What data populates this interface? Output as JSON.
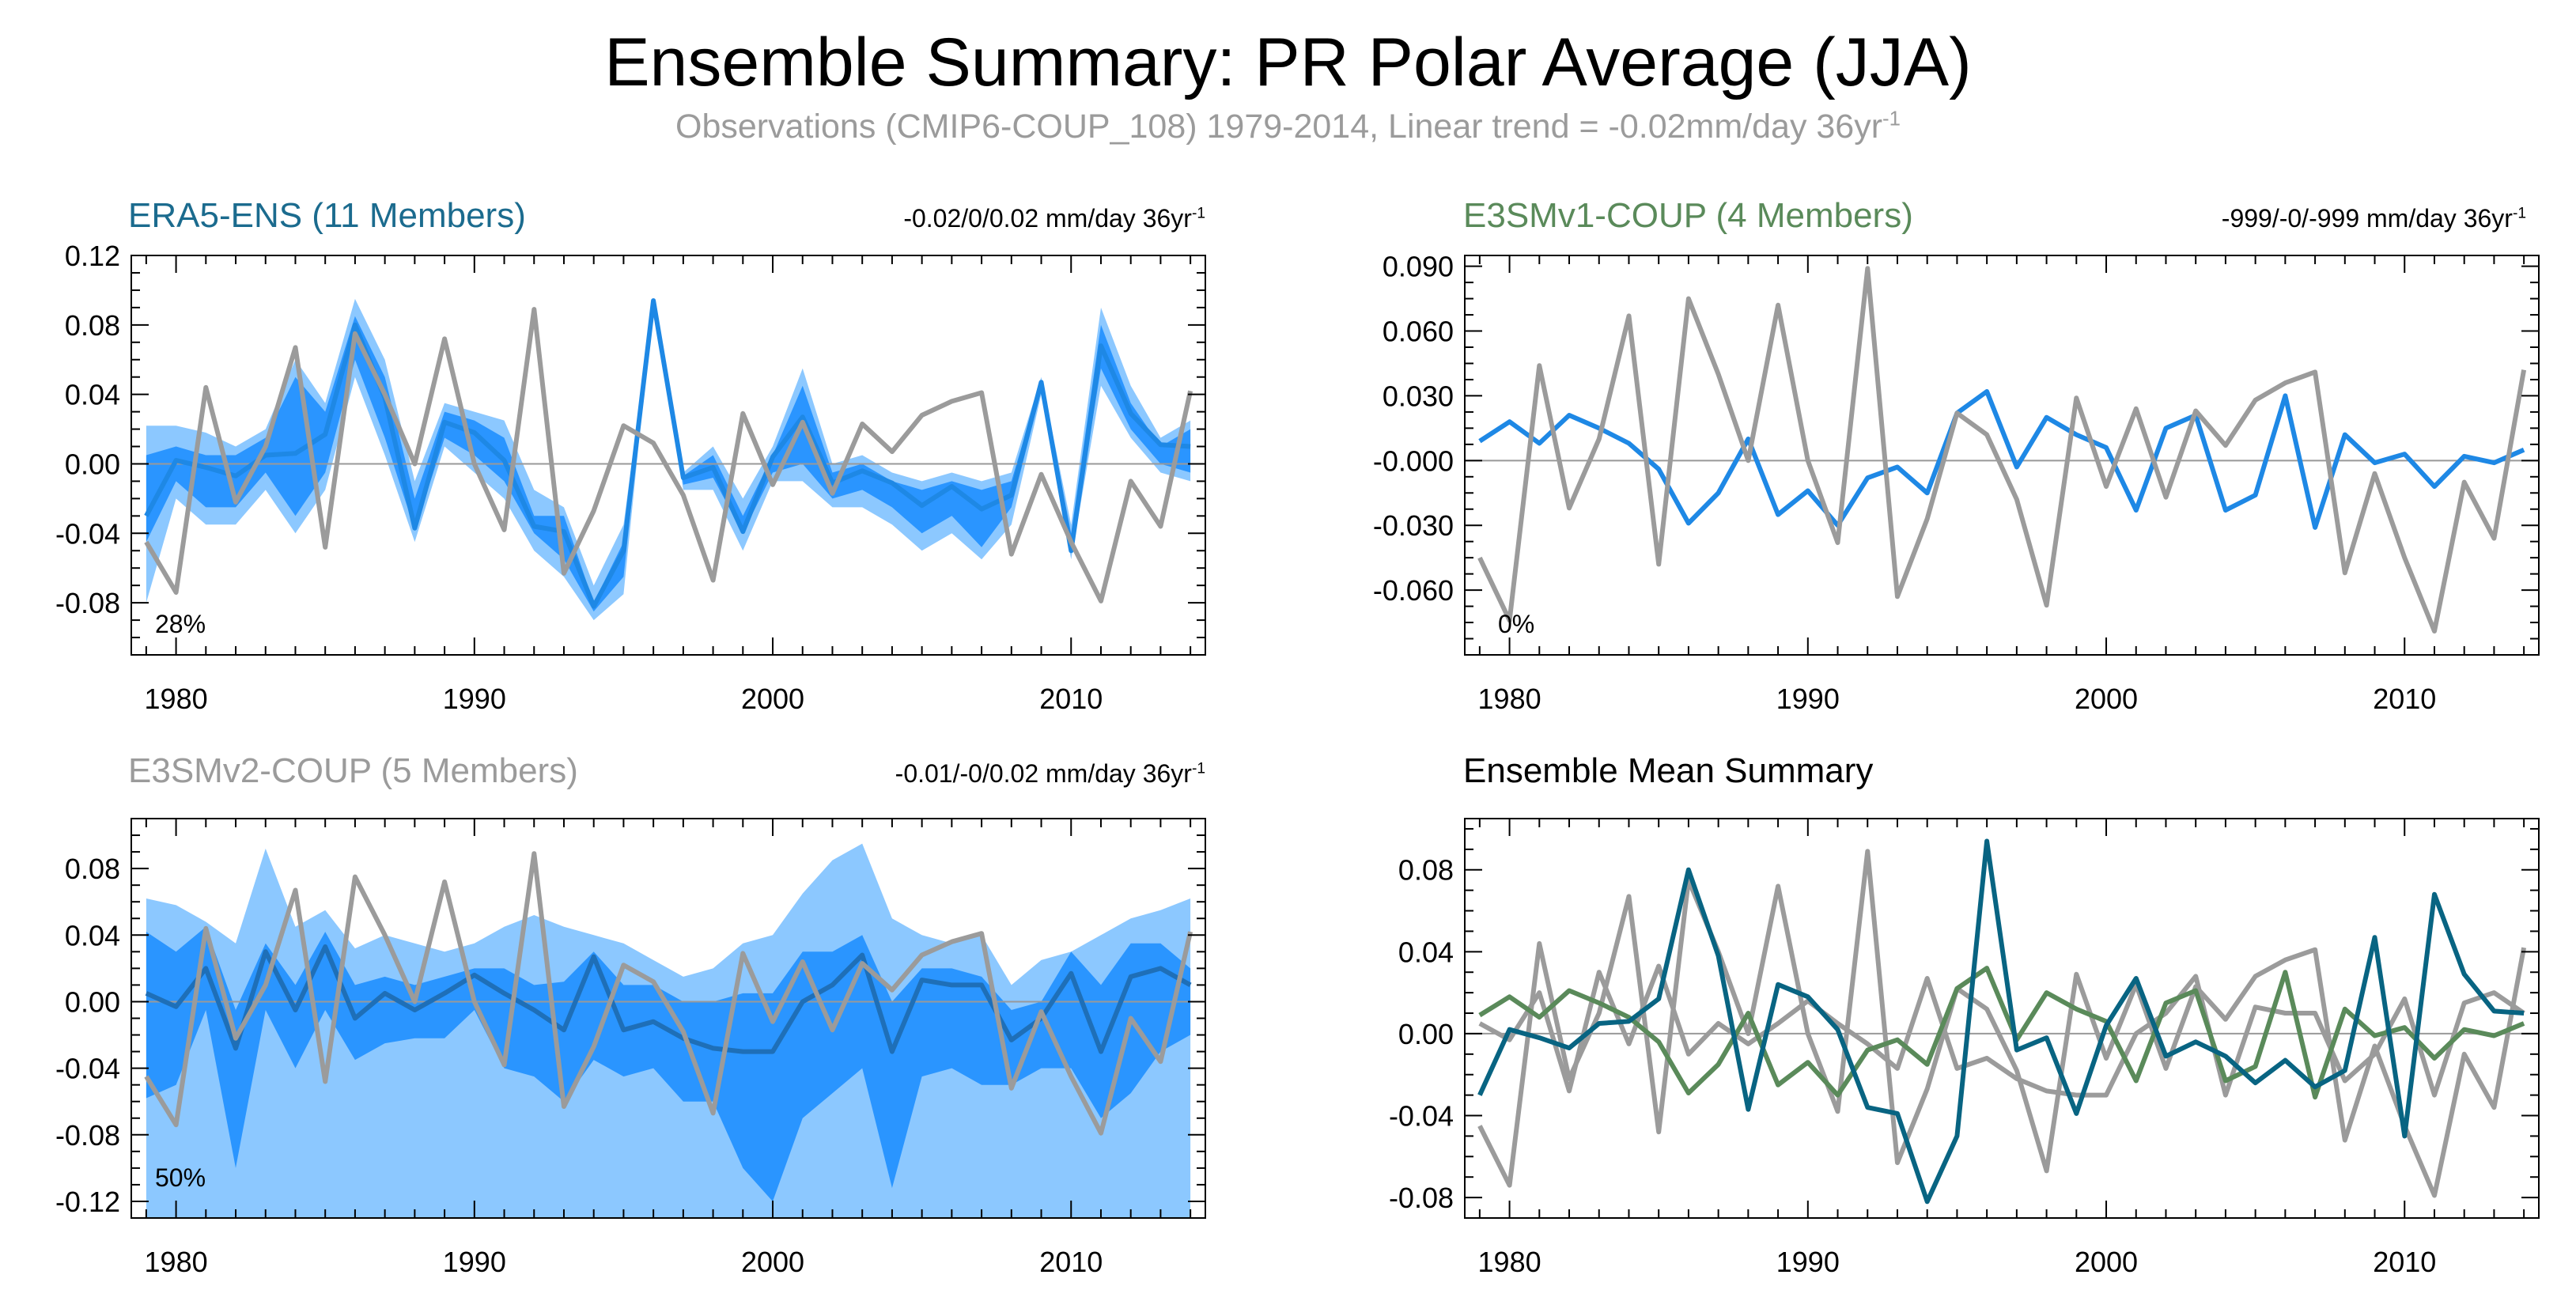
{
  "title": "Ensemble Summary: PR Polar Average (JJA)",
  "subtitle": {
    "text": "Observations (CMIP6-COUP_108) 1979-2014, Linear trend = -0.02mm/day 36yr",
    "sup": "-1"
  },
  "colors": {
    "obs": "#9b9b9b",
    "era5_line": "#1e88e5",
    "era5_dark": "#1e90ff",
    "era5_light": "#8cc8ff",
    "e3smv1": "#5a8a5a",
    "mean_teal": "#086482",
    "title_era5": "#1b6b8e",
    "title_e3smv1": "#5a8a5a",
    "title_e3smv2": "#9b9b9b"
  },
  "chart_data": [
    {
      "type": "line",
      "title": "ERA5-ENS (11 Members)",
      "trend_text": "-0.02/0/0.02 mm/day 36yr",
      "trend_sup": "-1",
      "annotation": "28%",
      "ylim": [
        -0.11,
        0.12
      ],
      "yticks": [
        "0.12",
        "0.08",
        "0.04",
        "0.00",
        "-0.04",
        "-0.08"
      ],
      "ytick_values": [
        0.12,
        0.08,
        0.04,
        0.0,
        -0.04,
        -0.08
      ],
      "xticks": [
        1980,
        1990,
        2000,
        2010
      ],
      "xlim": [
        1978.5,
        2014.5
      ],
      "x": [
        1979,
        1980,
        1981,
        1982,
        1983,
        1984,
        1985,
        1986,
        1987,
        1988,
        1989,
        1990,
        1991,
        1992,
        1993,
        1994,
        1995,
        1996,
        1997,
        1998,
        1999,
        2000,
        2001,
        2002,
        2003,
        2004,
        2005,
        2006,
        2007,
        2008,
        2009,
        2010,
        2011,
        2012,
        2013,
        2014
      ],
      "series": [
        {
          "role": "band_light",
          "upper": [
            0.022,
            0.022,
            0.018,
            0.01,
            0.02,
            0.06,
            0.035,
            0.095,
            0.06,
            -0.01,
            0.035,
            0.03,
            0.025,
            -0.015,
            -0.025,
            -0.07,
            -0.035,
            0.095,
            -0.005,
            0.01,
            -0.02,
            0.01,
            0.055,
            0.0,
            0.005,
            -0.005,
            -0.01,
            -0.005,
            -0.01,
            -0.005,
            0.05,
            -0.035,
            0.09,
            0.045,
            0.015,
            0.025
          ],
          "lower": [
            -0.08,
            -0.02,
            -0.035,
            -0.035,
            -0.015,
            -0.04,
            -0.015,
            0.05,
            0.005,
            -0.045,
            0.01,
            -0.005,
            -0.02,
            -0.05,
            -0.065,
            -0.09,
            -0.075,
            0.095,
            -0.015,
            -0.015,
            -0.05,
            -0.01,
            -0.01,
            -0.025,
            -0.025,
            -0.035,
            -0.05,
            -0.04,
            -0.055,
            -0.035,
            0.04,
            -0.055,
            0.045,
            0.015,
            -0.005,
            -0.01
          ]
        },
        {
          "role": "band_dark",
          "upper": [
            0.005,
            0.01,
            0.005,
            0.005,
            0.015,
            0.05,
            0.03,
            0.085,
            0.05,
            -0.02,
            0.03,
            0.025,
            0.015,
            -0.03,
            -0.03,
            -0.08,
            -0.045,
            0.095,
            -0.007,
            0.005,
            -0.03,
            0.005,
            0.045,
            -0.005,
            0.0,
            -0.01,
            -0.015,
            -0.01,
            -0.015,
            -0.01,
            0.048,
            -0.04,
            0.08,
            0.035,
            0.01,
            0.02
          ],
          "lower": [
            -0.045,
            -0.01,
            -0.025,
            -0.025,
            -0.005,
            -0.03,
            -0.005,
            0.06,
            0.015,
            -0.038,
            0.015,
            0.005,
            -0.01,
            -0.04,
            -0.055,
            -0.085,
            -0.065,
            0.095,
            -0.012,
            -0.008,
            -0.04,
            -0.005,
            0.0,
            -0.02,
            -0.015,
            -0.025,
            -0.04,
            -0.03,
            -0.048,
            -0.025,
            0.042,
            -0.05,
            0.055,
            0.02,
            0.0,
            -0.005
          ]
        },
        {
          "role": "ens_mean",
          "name": "",
          "color": "#1e88e5",
          "values": [
            -0.03,
            0.002,
            -0.002,
            -0.007,
            0.005,
            0.006,
            0.017,
            0.08,
            0.038,
            -0.037,
            0.024,
            0.018,
            0.002,
            -0.036,
            -0.039,
            -0.082,
            -0.05,
            0.094,
            -0.008,
            -0.002,
            -0.039,
            0.004,
            0.027,
            -0.011,
            -0.004,
            -0.011,
            -0.024,
            -0.013,
            -0.026,
            -0.018,
            0.047,
            -0.05,
            0.068,
            0.029,
            0.011,
            0.01
          ]
        },
        {
          "role": "obs",
          "name": "",
          "color": "#9b9b9b",
          "values": [
            -0.045,
            -0.074,
            0.044,
            -0.022,
            0.01,
            0.067,
            -0.048,
            0.075,
            0.04,
            0.0,
            0.072,
            0.0,
            -0.038,
            0.089,
            -0.063,
            -0.027,
            0.022,
            0.012,
            -0.018,
            -0.067,
            0.029,
            -0.012,
            0.024,
            -0.017,
            0.023,
            0.007,
            0.028,
            0.036,
            0.041,
            -0.052,
            -0.006,
            -0.045,
            -0.079,
            -0.01,
            -0.036,
            0.042
          ]
        }
      ]
    },
    {
      "type": "line",
      "title": "E3SMv1-COUP (4 Members)",
      "trend_text": "-999/-0/-999 mm/day 36yr",
      "trend_sup": "-1",
      "annotation": "0%",
      "ylim": [
        -0.09,
        0.095
      ],
      "yticks": [
        "0.090",
        "0.060",
        "0.030",
        "-0.000",
        "-0.030",
        "-0.060"
      ],
      "ytick_values": [
        0.09,
        0.06,
        0.03,
        0.0,
        -0.03,
        -0.06
      ],
      "xticks": [
        1980,
        1990,
        2000,
        2010
      ],
      "xlim": [
        1978.5,
        2014.5
      ],
      "x": [
        1979,
        1980,
        1981,
        1982,
        1983,
        1984,
        1985,
        1986,
        1987,
        1988,
        1989,
        1990,
        1991,
        1992,
        1993,
        1994,
        1995,
        1996,
        1997,
        1998,
        1999,
        2000,
        2001,
        2002,
        2003,
        2004,
        2005,
        2006,
        2007,
        2008,
        2009,
        2010,
        2011,
        2012,
        2013,
        2014
      ],
      "series": [
        {
          "role": "ens_mean",
          "name": "",
          "color": "#1e88e5",
          "values": [
            0.009,
            0.018,
            0.008,
            0.021,
            0.015,
            0.008,
            -0.004,
            -0.029,
            -0.015,
            0.01,
            -0.025,
            -0.014,
            -0.03,
            -0.008,
            -0.003,
            -0.015,
            0.022,
            0.032,
            -0.003,
            0.02,
            0.012,
            0.006,
            -0.023,
            0.015,
            0.021,
            -0.023,
            -0.016,
            0.03,
            -0.031,
            0.012,
            -0.001,
            0.003,
            -0.012,
            0.002,
            -0.001,
            0.005
          ]
        },
        {
          "role": "obs",
          "name": "",
          "color": "#9b9b9b",
          "values": [
            -0.045,
            -0.074,
            0.044,
            -0.022,
            0.01,
            0.067,
            -0.048,
            0.075,
            0.04,
            0.0,
            0.072,
            0.0,
            -0.038,
            0.089,
            -0.063,
            -0.027,
            0.022,
            0.012,
            -0.018,
            -0.067,
            0.029,
            -0.012,
            0.024,
            -0.017,
            0.023,
            0.007,
            0.028,
            0.036,
            0.041,
            -0.052,
            -0.006,
            -0.045,
            -0.079,
            -0.01,
            -0.036,
            0.042
          ]
        }
      ]
    },
    {
      "type": "line",
      "title": "E3SMv2-COUP (5 Members)",
      "trend_text": "-0.01/-0/0.02 mm/day 36yr",
      "trend_sup": "-1",
      "annotation": "50%",
      "ylim": [
        -0.13,
        0.11
      ],
      "yticks": [
        "0.08",
        "0.04",
        "0.00",
        "-0.04",
        "-0.08",
        "-0.12"
      ],
      "ytick_values": [
        0.08,
        0.04,
        0.0,
        -0.04,
        -0.08,
        -0.12
      ],
      "xticks": [
        1980,
        1990,
        2000,
        2010
      ],
      "xlim": [
        1978.5,
        2014.5
      ],
      "x": [
        1979,
        1980,
        1981,
        1982,
        1983,
        1984,
        1985,
        1986,
        1987,
        1988,
        1989,
        1990,
        1991,
        1992,
        1993,
        1994,
        1995,
        1996,
        1997,
        1998,
        1999,
        2000,
        2001,
        2002,
        2003,
        2004,
        2005,
        2006,
        2007,
        2008,
        2009,
        2010,
        2011,
        2012,
        2013,
        2014
      ],
      "series": [
        {
          "role": "band_light",
          "upper": [
            0.062,
            0.058,
            0.048,
            0.035,
            0.092,
            0.045,
            0.055,
            0.032,
            0.04,
            0.035,
            0.03,
            0.035,
            0.045,
            0.052,
            0.045,
            0.04,
            0.035,
            0.025,
            0.015,
            0.02,
            0.035,
            0.04,
            0.065,
            0.085,
            0.095,
            0.05,
            0.04,
            0.035,
            0.04,
            0.01,
            0.025,
            0.03,
            0.04,
            0.05,
            0.055,
            0.062
          ]
        },
        {
          "role": "band_dark",
          "upper": [
            0.042,
            0.03,
            0.045,
            -0.005,
            0.035,
            0.01,
            0.042,
            0.01,
            0.015,
            0.01,
            0.015,
            0.02,
            0.02,
            0.01,
            0.012,
            0.03,
            0.01,
            0.01,
            0.0,
            0.0,
            0.005,
            0.005,
            0.03,
            0.03,
            0.04,
            0.0,
            0.02,
            0.02,
            0.015,
            -0.005,
            0.0,
            0.03,
            0.01,
            0.035,
            0.035,
            0.02
          ],
          "lower": [
            -0.058,
            -0.05,
            -0.005,
            -0.1,
            -0.005,
            -0.04,
            -0.005,
            -0.035,
            -0.025,
            -0.022,
            -0.022,
            -0.005,
            -0.04,
            -0.045,
            -0.06,
            -0.035,
            -0.045,
            -0.04,
            -0.06,
            -0.06,
            -0.1,
            -0.12,
            -0.07,
            -0.055,
            -0.04,
            -0.112,
            -0.045,
            -0.04,
            -0.05,
            -0.05,
            -0.04,
            -0.04,
            -0.07,
            -0.055,
            -0.03,
            -0.02
          ]
        },
        {
          "role": "ens_mean",
          "name": "",
          "color": "#1e6fb8",
          "values": [
            0.005,
            -0.003,
            0.02,
            -0.028,
            0.03,
            -0.005,
            0.033,
            -0.01,
            0.005,
            -0.005,
            0.005,
            0.016,
            0.005,
            -0.005,
            -0.017,
            0.027,
            -0.017,
            -0.012,
            -0.022,
            -0.028,
            -0.03,
            -0.03,
            0.0,
            0.01,
            0.028,
            -0.03,
            0.013,
            0.01,
            0.01,
            -0.023,
            -0.01,
            0.017,
            -0.03,
            0.015,
            0.02,
            0.01
          ]
        },
        {
          "role": "obs",
          "name": "",
          "color": "#9b9b9b",
          "values": [
            -0.045,
            -0.074,
            0.044,
            -0.022,
            0.01,
            0.067,
            -0.048,
            0.075,
            0.04,
            0.0,
            0.072,
            0.0,
            -0.038,
            0.089,
            -0.063,
            -0.027,
            0.022,
            0.012,
            -0.018,
            -0.067,
            0.029,
            -0.012,
            0.024,
            -0.017,
            0.023,
            0.007,
            0.028,
            0.036,
            0.041,
            -0.052,
            -0.006,
            -0.045,
            -0.079,
            -0.01,
            -0.036,
            0.042
          ]
        }
      ]
    },
    {
      "type": "line",
      "title": "Ensemble Mean Summary",
      "trend_text": "",
      "trend_sup": "",
      "annotation": "",
      "ylim": [
        -0.09,
        0.105
      ],
      "yticks": [
        "0.08",
        "0.04",
        "0.00",
        "-0.04",
        "-0.08"
      ],
      "ytick_values": [
        0.08,
        0.04,
        0.0,
        -0.04,
        -0.08
      ],
      "xticks": [
        1980,
        1990,
        2000,
        2010
      ],
      "xlim": [
        1978.5,
        2014.5
      ],
      "x": [
        1979,
        1980,
        1981,
        1982,
        1983,
        1984,
        1985,
        1986,
        1987,
        1988,
        1989,
        1990,
        1991,
        1992,
        1993,
        1994,
        1995,
        1996,
        1997,
        1998,
        1999,
        2000,
        2001,
        2002,
        2003,
        2004,
        2005,
        2006,
        2007,
        2008,
        2009,
        2010,
        2011,
        2012,
        2013,
        2014
      ],
      "series": [
        {
          "role": "obs",
          "name": "",
          "color": "#9b9b9b",
          "values": [
            -0.045,
            -0.074,
            0.044,
            -0.022,
            0.01,
            0.067,
            -0.048,
            0.075,
            0.04,
            0.0,
            0.072,
            0.0,
            -0.038,
            0.089,
            -0.063,
            -0.027,
            0.022,
            0.012,
            -0.018,
            -0.067,
            0.029,
            -0.012,
            0.024,
            -0.017,
            0.023,
            0.007,
            0.028,
            0.036,
            0.041,
            -0.052,
            -0.006,
            -0.045,
            -0.079,
            -0.01,
            -0.036,
            0.042
          ]
        },
        {
          "role": "model",
          "name": "",
          "color": "#9b9b9b",
          "values": [
            0.005,
            -0.003,
            0.02,
            -0.028,
            0.03,
            -0.005,
            0.033,
            -0.01,
            0.005,
            -0.005,
            0.005,
            0.016,
            0.005,
            -0.005,
            -0.017,
            0.027,
            -0.017,
            -0.012,
            -0.022,
            -0.028,
            -0.03,
            -0.03,
            0.0,
            0.01,
            0.028,
            -0.03,
            0.013,
            0.01,
            0.01,
            -0.023,
            -0.01,
            0.017,
            -0.03,
            0.015,
            0.02,
            0.01
          ]
        },
        {
          "role": "model",
          "name": "",
          "color": "#5a8a5a",
          "values": [
            0.009,
            0.018,
            0.008,
            0.021,
            0.015,
            0.008,
            -0.004,
            -0.029,
            -0.015,
            0.01,
            -0.025,
            -0.014,
            -0.03,
            -0.008,
            -0.003,
            -0.015,
            0.022,
            0.032,
            -0.003,
            0.02,
            0.012,
            0.006,
            -0.023,
            0.015,
            0.021,
            -0.023,
            -0.016,
            0.03,
            -0.031,
            0.012,
            -0.001,
            0.003,
            -0.012,
            0.002,
            -0.001,
            0.005
          ]
        },
        {
          "role": "model",
          "name": "",
          "color": "#086482",
          "values": [
            -0.03,
            0.002,
            -0.002,
            -0.007,
            0.005,
            0.006,
            0.017,
            0.08,
            0.038,
            -0.037,
            0.024,
            0.018,
            0.002,
            -0.036,
            -0.039,
            -0.082,
            -0.05,
            0.094,
            -0.008,
            -0.002,
            -0.039,
            0.004,
            0.027,
            -0.011,
            -0.004,
            -0.011,
            -0.024,
            -0.013,
            -0.026,
            -0.018,
            0.047,
            -0.05,
            0.068,
            0.029,
            0.011,
            0.01
          ]
        }
      ]
    }
  ]
}
